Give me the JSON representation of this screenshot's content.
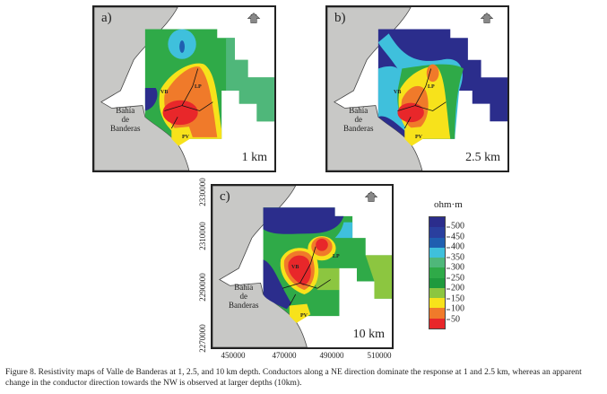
{
  "panels": [
    {
      "label": "a)",
      "depth": "1 km"
    },
    {
      "label": "b)",
      "depth": "2.5 km"
    },
    {
      "label": "c)",
      "depth": "10 km"
    }
  ],
  "map_labels": {
    "bay": [
      "Bahía",
      "de",
      "Banderas"
    ],
    "north": "N",
    "vb": "VB",
    "lp": "LP",
    "pv": "PV"
  },
  "axes_c": {
    "x_ticks": [
      "450000",
      "470000",
      "490000",
      "510000"
    ],
    "y_ticks": [
      "2330000",
      "2310000",
      "2290000",
      "2270000"
    ]
  },
  "legend": {
    "title": "ohm·m",
    "labels": [
      "500",
      "450",
      "400",
      "350",
      "300",
      "250",
      "200",
      "150",
      "100",
      "50"
    ],
    "colors": [
      "#2b2d8c",
      "#2a3f9e",
      "#1f5fb0",
      "#3fc0dc",
      "#4fb77a",
      "#2faa48",
      "#1f9a3d",
      "#8cc640",
      "#f7e21b",
      "#f07a2a",
      "#e8272a"
    ]
  },
  "caption": "Figure 8. Resistivity maps of Valle de Banderas at 1, 2.5, and 10 km depth. Conductors along a NE direction dominate the response at 1 and 2.5 km, whereas an apparent change in the conductor direction towards the NW is observed at larger depths (10km)."
}
